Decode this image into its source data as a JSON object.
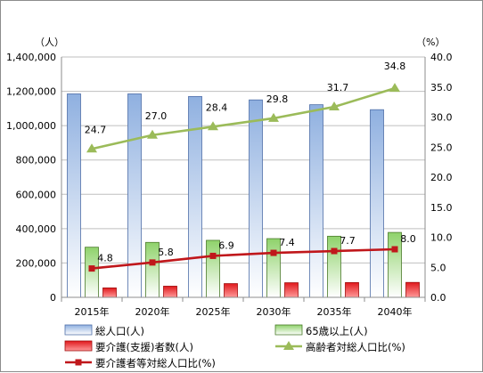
{
  "chart_data": {
    "type": "bar",
    "categories": [
      "2015年",
      "2020年",
      "2025年",
      "2030年",
      "2035年",
      "2040年"
    ],
    "left_axis": {
      "unit": "（人）",
      "min": 0,
      "max": 1400000,
      "step": 200000,
      "ticks": [
        "0",
        "200,000",
        "400,000",
        "600,000",
        "800,000",
        "1,000,000",
        "1,200,000",
        "1,400,000"
      ]
    },
    "right_axis": {
      "unit": "（%）",
      "min": 0,
      "max": 40,
      "step": 5,
      "ticks": [
        "0.0",
        "5.0",
        "10.0",
        "15.0",
        "20.0",
        "25.0",
        "30.0",
        "35.0",
        "40.0"
      ]
    },
    "grid": true,
    "legend_position": "bottom",
    "series": [
      {
        "name": "総人口(人)",
        "kind": "bar",
        "axis": "left",
        "color": "#9bb7e0",
        "values": [
          1185000,
          1185000,
          1170000,
          1150000,
          1122000,
          1093000
        ]
      },
      {
        "name": "65歳以上(人)",
        "kind": "bar",
        "axis": "left",
        "color": "#8fd26b",
        "values": [
          292000,
          320000,
          332000,
          342000,
          356000,
          378000
        ]
      },
      {
        "name": "要介護(支援)者数(人)",
        "kind": "bar",
        "axis": "left",
        "color": "#e02020",
        "values": [
          55000,
          65000,
          80000,
          85000,
          86000,
          87000
        ]
      },
      {
        "name": "高齢者対総人口比(%)",
        "kind": "line",
        "axis": "right",
        "color": "#9bbb59",
        "marker": "triangle",
        "values": [
          24.7,
          27.0,
          28.4,
          29.8,
          31.7,
          34.8
        ],
        "labels": [
          "24.7",
          "27.0",
          "28.4",
          "29.8",
          "31.7",
          "34.8"
        ]
      },
      {
        "name": "要介護者等対総人口比(%)",
        "kind": "line",
        "axis": "right",
        "color": "#c0171b",
        "marker": "square",
        "values": [
          4.8,
          5.8,
          6.9,
          7.4,
          7.7,
          8.0
        ],
        "labels": [
          "4.8",
          "5.8",
          "6.9",
          "7.4",
          "7.7",
          "8.0"
        ]
      }
    ]
  }
}
